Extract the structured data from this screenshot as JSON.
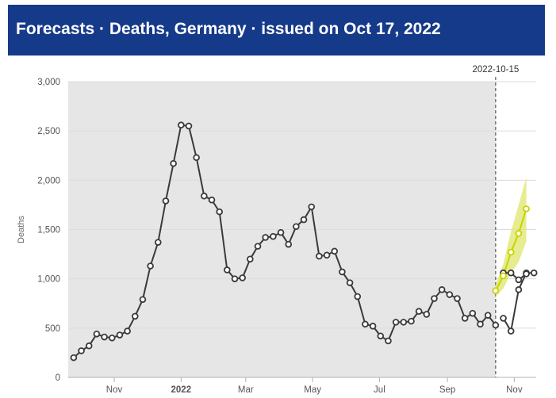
{
  "header": {
    "title": "Forecasts · Deaths, Germany  · issued on Oct 17, 2022"
  },
  "chart_data": {
    "type": "line",
    "title": "",
    "xlabel": "",
    "ylabel": "Deaths",
    "ylim": [
      0,
      3000
    ],
    "yticks": [
      0,
      500,
      1000,
      1500,
      2000,
      2500,
      3000
    ],
    "ytick_labels": [
      "0",
      "500",
      "1,000",
      "1,500",
      "2,000",
      "2,500",
      "3,000"
    ],
    "xlim": [
      "2021-09-20",
      "2022-11-21"
    ],
    "xticks": [
      {
        "date": "2021-11-01",
        "label": "Nov",
        "bold": false
      },
      {
        "date": "2022-01-01",
        "label": "2022",
        "bold": true
      },
      {
        "date": "2022-03-01",
        "label": "Mar",
        "bold": false
      },
      {
        "date": "2022-05-01",
        "label": "May",
        "bold": false
      },
      {
        "date": "2022-07-01",
        "label": "Jul",
        "bold": false
      },
      {
        "date": "2022-09-01",
        "label": "Sep",
        "bold": false
      },
      {
        "date": "2022-11-01",
        "label": "Nov",
        "bold": false
      }
    ],
    "issue_marker": {
      "date": "2022-10-15",
      "label": "2022-10-15"
    },
    "grid": true,
    "colors": {
      "observed": "#3a3a3a",
      "forecast": "#c8d400",
      "forecast_band": "#dde66a",
      "shaded_region": "#e6e6e6"
    },
    "series": [
      {
        "role": "observed",
        "x": [
          "2021-09-25",
          "2021-10-02",
          "2021-10-09",
          "2021-10-16",
          "2021-10-23",
          "2021-10-30",
          "2021-11-06",
          "2021-11-13",
          "2021-11-20",
          "2021-11-27",
          "2021-12-04",
          "2021-12-11",
          "2021-12-18",
          "2021-12-25",
          "2022-01-01",
          "2022-01-08",
          "2022-01-15",
          "2022-01-22",
          "2022-01-29",
          "2022-02-05",
          "2022-02-12",
          "2022-02-19",
          "2022-02-26",
          "2022-03-05",
          "2022-03-12",
          "2022-03-19",
          "2022-03-26",
          "2022-04-02",
          "2022-04-09",
          "2022-04-16",
          "2022-04-23",
          "2022-04-30",
          "2022-05-07",
          "2022-05-14",
          "2022-05-21",
          "2022-05-28",
          "2022-06-04",
          "2022-06-11",
          "2022-06-18",
          "2022-06-25",
          "2022-07-02",
          "2022-07-09",
          "2022-07-16",
          "2022-07-23",
          "2022-07-30",
          "2022-08-06",
          "2022-08-13",
          "2022-08-20",
          "2022-08-27",
          "2022-09-03",
          "2022-09-10",
          "2022-09-17",
          "2022-09-24",
          "2022-10-01",
          "2022-10-08",
          "2022-10-15"
        ],
        "values": [
          200,
          270,
          320,
          440,
          410,
          400,
          430,
          470,
          620,
          790,
          1130,
          1370,
          1790,
          2170,
          2560,
          2550,
          2230,
          1840,
          1800,
          1680,
          1090,
          1000,
          1010,
          1200,
          1330,
          1420,
          1430,
          1470,
          1350,
          1530,
          1600,
          1730,
          1230,
          1240,
          1280,
          1070,
          960,
          820,
          540,
          520,
          420,
          370,
          560,
          560,
          570,
          670,
          640,
          800,
          890,
          840,
          800,
          600,
          650,
          540,
          630,
          530
        ]
      },
      {
        "role": "observed",
        "x": [
          "2022-10-22",
          "2022-10-29",
          "2022-11-05",
          "2022-11-12",
          "2022-11-19"
        ],
        "values": [
          600,
          470,
          890,
          1060,
          1060
        ]
      },
      {
        "role": "observed",
        "x": [
          "2022-10-22",
          "2022-10-29",
          "2022-11-05",
          "2022-11-12"
        ],
        "values": [
          1060,
          1060,
          990,
          1050
        ]
      }
    ],
    "forecast": {
      "x": [
        "2022-10-15",
        "2022-10-22",
        "2022-10-29",
        "2022-11-05",
        "2022-11-12"
      ],
      "values": [
        880,
        1030,
        1270,
        1460,
        1710
      ],
      "lower": [
        820,
        900,
        1060,
        1170,
        1380
      ],
      "upper": [
        940,
        1150,
        1480,
        1750,
        2030
      ]
    }
  }
}
